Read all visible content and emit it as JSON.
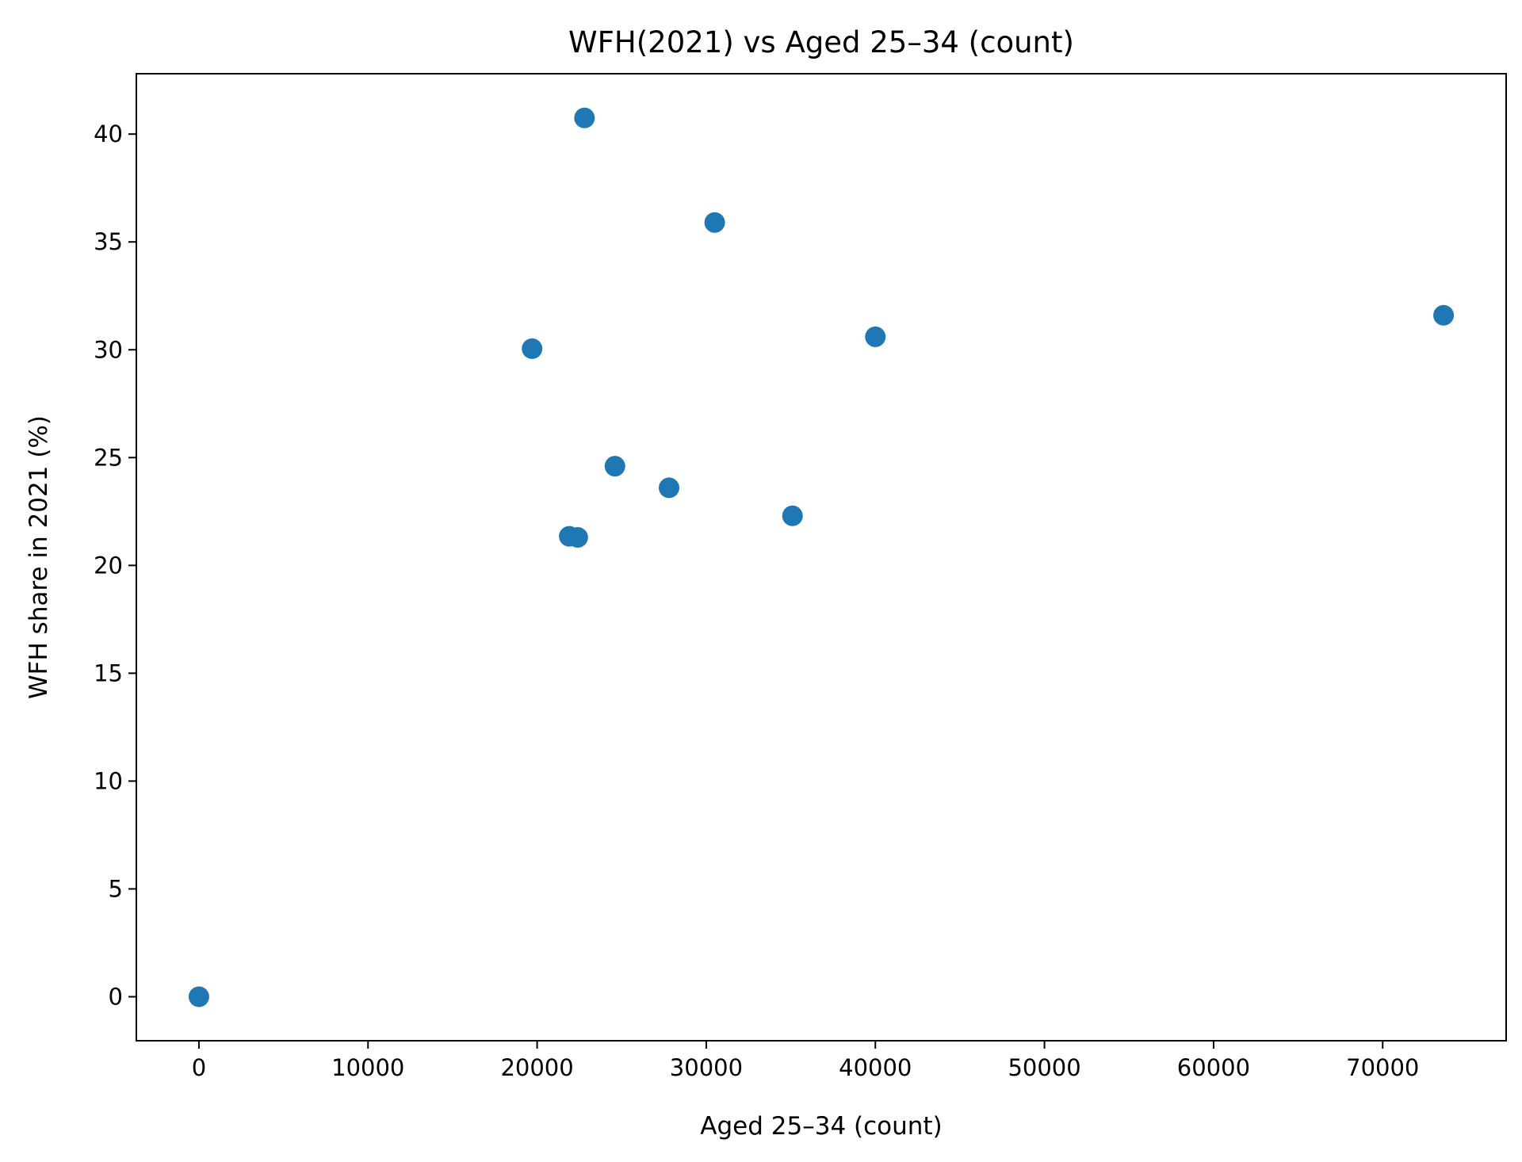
{
  "chart_data": {
    "type": "scatter",
    "title": "WFH(2021) vs Aged 25–34 (count)",
    "xlabel": "Aged 25–34 (count)",
    "ylabel": "WFH share in 2021 (%)",
    "xlim": [
      -3700,
      77300
    ],
    "ylim": [
      -2.04,
      42.8
    ],
    "xticks": [
      0,
      10000,
      20000,
      30000,
      40000,
      50000,
      60000,
      70000
    ],
    "xtick_labels": [
      "0",
      "10000",
      "20000",
      "30000",
      "40000",
      "50000",
      "60000",
      "70000"
    ],
    "yticks": [
      0,
      5,
      10,
      15,
      20,
      25,
      30,
      35,
      40
    ],
    "ytick_labels": [
      "0",
      "5",
      "10",
      "15",
      "20",
      "25",
      "30",
      "35",
      "40"
    ],
    "grid": false,
    "marker_color": "#1f77b4",
    "points": [
      {
        "x": 0,
        "y": 0.0
      },
      {
        "x": 19700,
        "y": 30.05
      },
      {
        "x": 21900,
        "y": 21.35
      },
      {
        "x": 22400,
        "y": 21.3
      },
      {
        "x": 22800,
        "y": 40.75
      },
      {
        "x": 24600,
        "y": 24.6
      },
      {
        "x": 27800,
        "y": 23.6
      },
      {
        "x": 30500,
        "y": 35.9
      },
      {
        "x": 35100,
        "y": 22.3
      },
      {
        "x": 40000,
        "y": 30.6
      },
      {
        "x": 73600,
        "y": 31.6
      }
    ]
  }
}
